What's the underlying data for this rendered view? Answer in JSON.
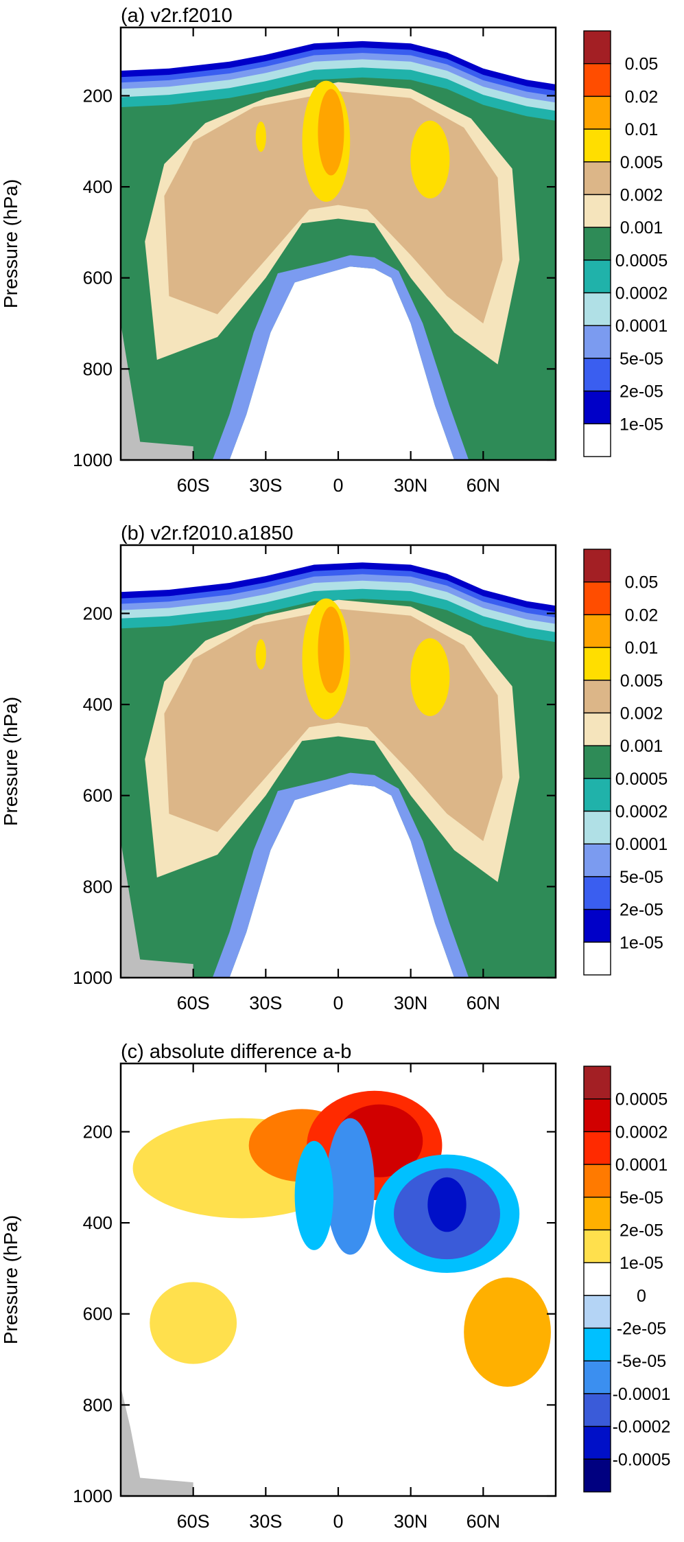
{
  "chart_data": [
    {
      "type": "heatmap",
      "title": "(a) v2r.f2010",
      "xlabel": "",
      "ylabel": "Pressure (hPa)",
      "xlim": [
        -90,
        90
      ],
      "ylim": [
        1000,
        50
      ],
      "x_ticks": [
        -60,
        -30,
        0,
        30,
        60
      ],
      "x_tick_labels": [
        "60S",
        "30S",
        "0",
        "30N",
        "60N"
      ],
      "y_ticks": [
        200,
        400,
        600,
        800,
        1000
      ],
      "y_tick_labels": [
        "200",
        "400",
        "600",
        "800",
        "1000"
      ],
      "legend": "right",
      "colorbar": {
        "labels": [
          "0.05",
          "0.02",
          "0.01",
          "0.005",
          "0.002",
          "0.001",
          "0.0005",
          "0.0002",
          "0.0001",
          "5e-05",
          "2e-05",
          "1e-05"
        ],
        "colors": [
          "#a31f24",
          "#ff4d00",
          "#ffa500",
          "#ffde00",
          "#dcb688",
          "#f5e4bc",
          "#2e8b57",
          "#20b2aa",
          "#b0e0e6",
          "#7b9bf0",
          "#3a5ef0",
          "#0000c8",
          "#ffffff"
        ]
      }
    },
    {
      "type": "heatmap",
      "title": "(b) v2r.f2010.a1850",
      "xlabel": "",
      "ylabel": "Pressure (hPa)",
      "xlim": [
        -90,
        90
      ],
      "ylim": [
        1000,
        50
      ],
      "x_ticks": [
        -60,
        -30,
        0,
        30,
        60
      ],
      "x_tick_labels": [
        "60S",
        "30S",
        "0",
        "30N",
        "60N"
      ],
      "y_ticks": [
        200,
        400,
        600,
        800,
        1000
      ],
      "y_tick_labels": [
        "200",
        "400",
        "600",
        "800",
        "1000"
      ],
      "legend": "right",
      "colorbar": {
        "labels": [
          "0.05",
          "0.02",
          "0.01",
          "0.005",
          "0.002",
          "0.001",
          "0.0005",
          "0.0002",
          "0.0001",
          "5e-05",
          "2e-05",
          "1e-05"
        ],
        "colors": [
          "#a31f24",
          "#ff4d00",
          "#ffa500",
          "#ffde00",
          "#dcb688",
          "#f5e4bc",
          "#2e8b57",
          "#20b2aa",
          "#b0e0e6",
          "#7b9bf0",
          "#3a5ef0",
          "#0000c8",
          "#ffffff"
        ]
      }
    },
    {
      "type": "heatmap",
      "title": "(c) absolute difference a-b",
      "xlabel": "",
      "ylabel": "Pressure (hPa)",
      "xlim": [
        -90,
        90
      ],
      "ylim": [
        1000,
        50
      ],
      "x_ticks": [
        -60,
        -30,
        0,
        30,
        60
      ],
      "x_tick_labels": [
        "60S",
        "30S",
        "0",
        "30N",
        "60N"
      ],
      "y_ticks": [
        200,
        400,
        600,
        800,
        1000
      ],
      "y_tick_labels": [
        "200",
        "400",
        "600",
        "800",
        "1000"
      ],
      "legend": "right",
      "colorbar": {
        "labels": [
          "0.0005",
          "0.0002",
          "0.0001",
          "5e-05",
          "2e-05",
          "1e-05",
          "0",
          "-2e-05",
          "-5e-05",
          "-0.0001",
          "-0.0002",
          "-0.0005"
        ],
        "colors": [
          "#a31f24",
          "#d10000",
          "#ff2a00",
          "#ff7a00",
          "#ffb000",
          "#ffe04d",
          "#ffffff",
          "#b4d4f5",
          "#00c0ff",
          "#3b8ff0",
          "#3a5bd9",
          "#0010c8",
          "#000080"
        ]
      }
    }
  ]
}
